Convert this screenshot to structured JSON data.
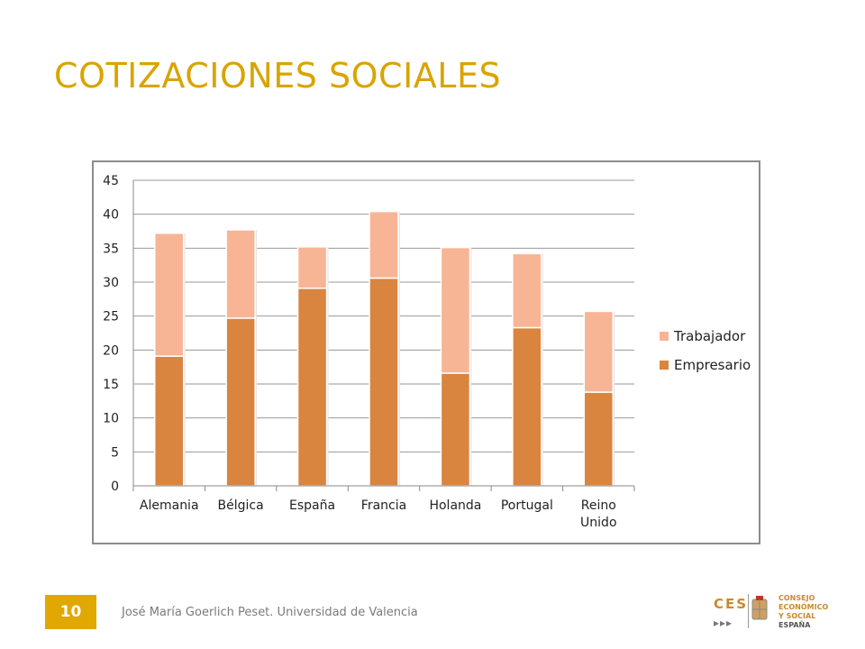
{
  "slide": {
    "title": "COTIZACIONES SOCIALES",
    "page_number": "10",
    "footer": "José María Goerlich Peset. Universidad de Valencia"
  },
  "logo": {
    "abbr": "CES",
    "arrows": "▸▸▸",
    "lines": [
      "CONSEJO",
      "ECONÓMICO",
      "Y SOCIAL",
      "ESPAÑA"
    ]
  },
  "colors": {
    "title": "#d9a400",
    "page_badge": "#e0a800",
    "empresario": "#d9843f",
    "trabajador": "#f7b595"
  },
  "chart_data": {
    "type": "bar",
    "stacked": true,
    "categories": [
      "Alemania",
      "Bélgica",
      "España",
      "Francia",
      "Holanda",
      "Portugal",
      "Reino Unido"
    ],
    "series": [
      {
        "name": "Empresario",
        "values": [
          19.1,
          24.7,
          29.1,
          30.6,
          16.6,
          23.3,
          13.8
        ]
      },
      {
        "name": "Trabajador",
        "values": [
          18.1,
          13.0,
          6.1,
          9.8,
          18.5,
          10.9,
          11.9
        ]
      }
    ],
    "ylim": [
      0,
      45
    ],
    "yticks": [
      "0",
      "5",
      "10",
      "15",
      "20",
      "25",
      "30",
      "35",
      "40",
      "45"
    ],
    "grid": true,
    "legend_position": "right",
    "legend": [
      "Trabajador",
      "Empresario"
    ]
  }
}
